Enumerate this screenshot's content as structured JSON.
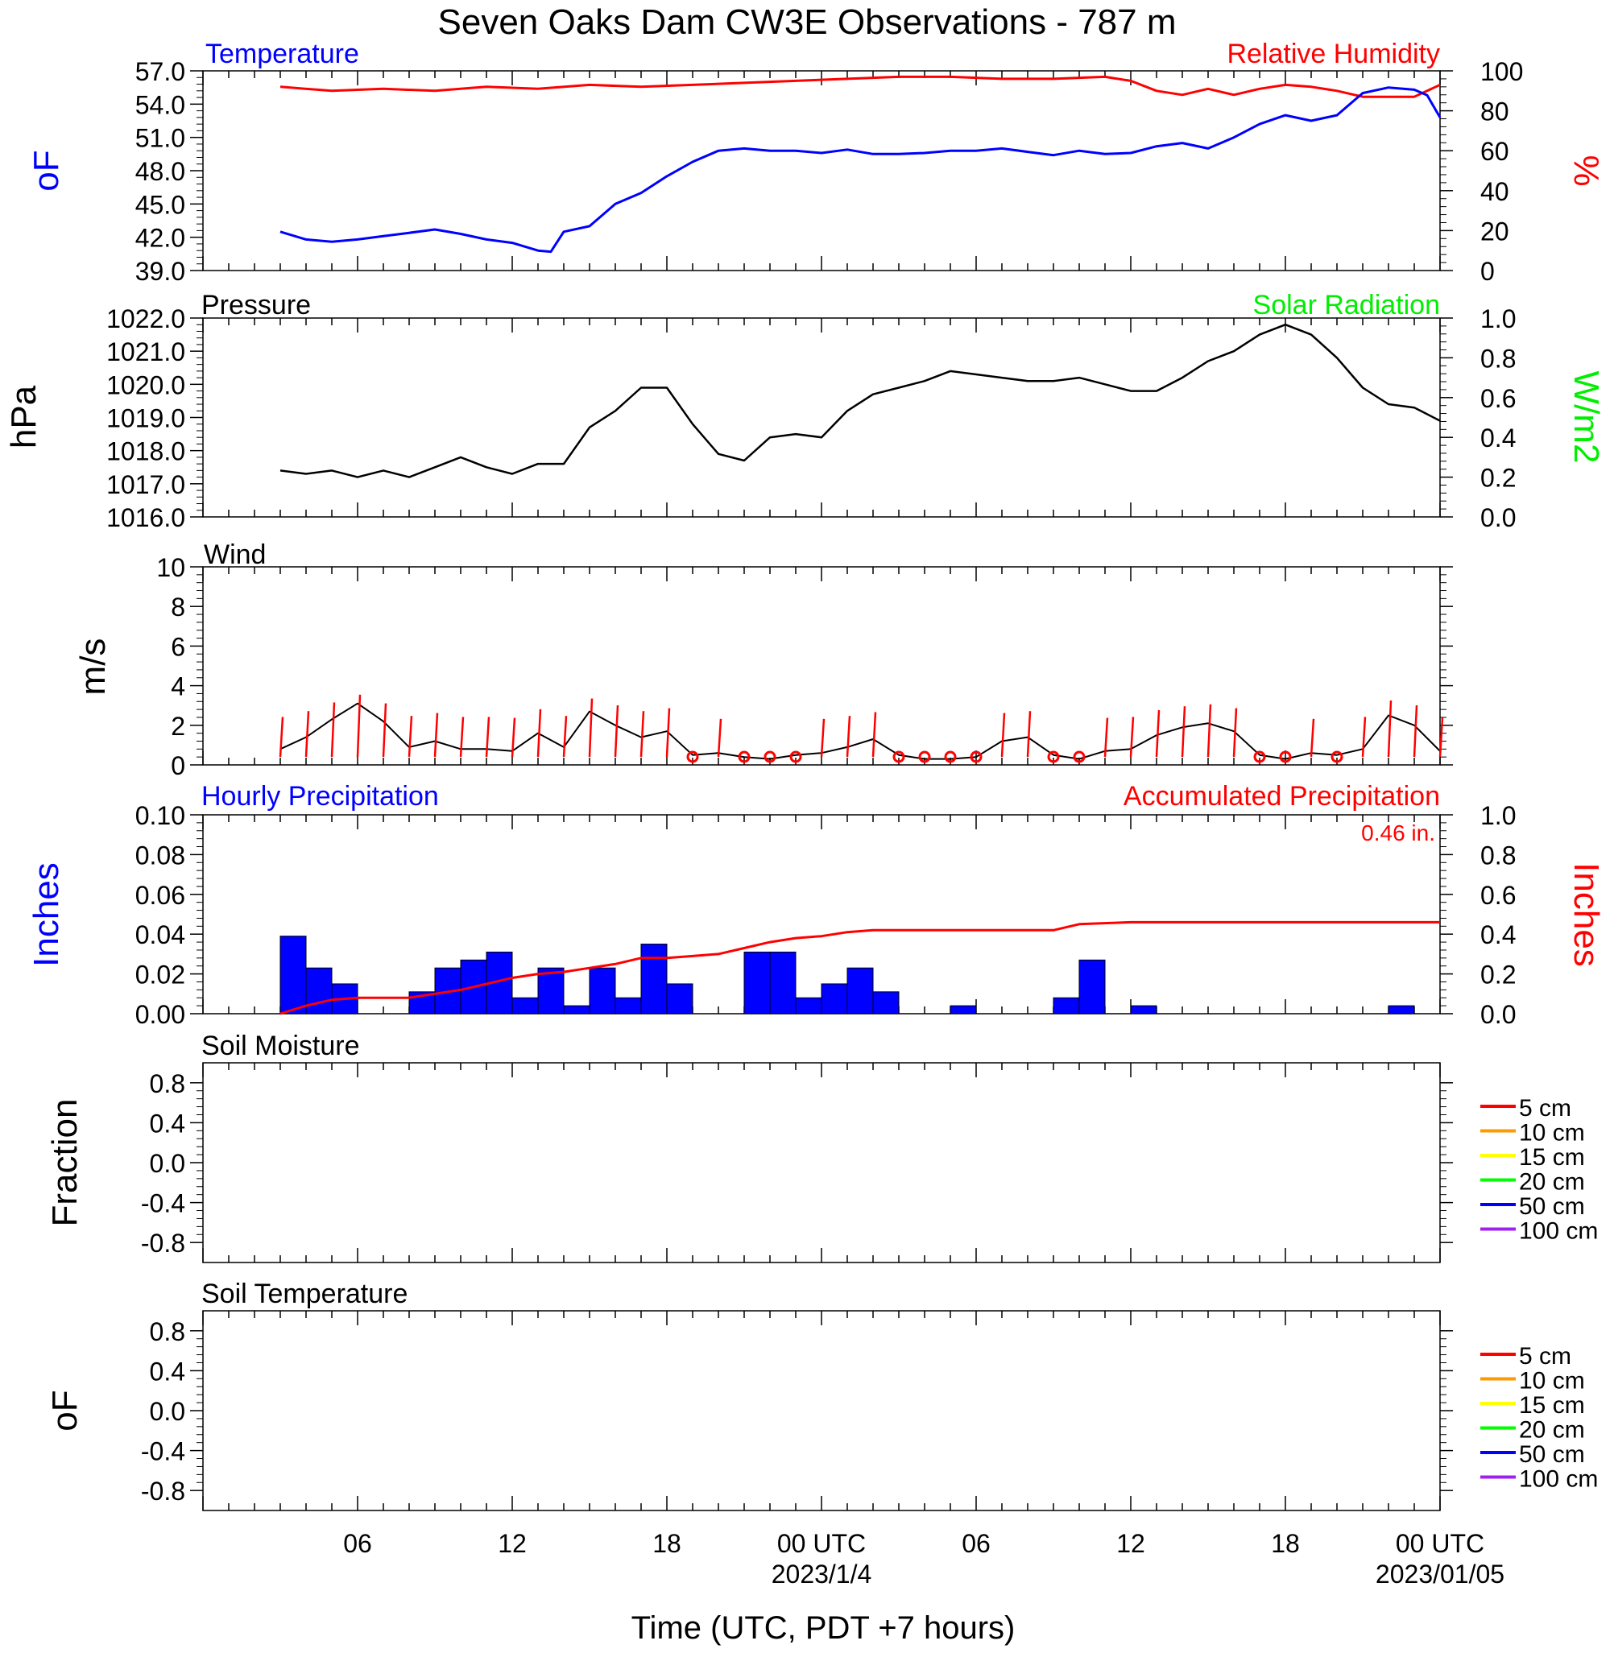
{
  "title": "Seven Oaks Dam CW3E Observations - 787 m",
  "x_axis": {
    "label": "Time (UTC, PDT +7 hours)",
    "range_hours": [
      -3,
      45
    ],
    "ticks": [
      {
        "hour": 3,
        "label": "06",
        "sub": ""
      },
      {
        "hour": 9,
        "label": "12",
        "sub": ""
      },
      {
        "hour": 15,
        "label": "18",
        "sub": ""
      },
      {
        "hour": 21,
        "label": "00 UTC",
        "sub": "2023/1/4"
      },
      {
        "hour": 27,
        "label": "06",
        "sub": ""
      },
      {
        "hour": 33,
        "label": "12",
        "sub": ""
      },
      {
        "hour": 39,
        "label": "18",
        "sub": ""
      },
      {
        "hour": 45,
        "label": "00 UTC",
        "sub": "2023/01/05"
      }
    ]
  },
  "panels": {
    "temperature": {
      "left_title": "Temperature",
      "right_title": "Relative Humidity",
      "left_unit": "oF",
      "right_unit": "%",
      "left_ticks": [
        "57.0",
        "54.0",
        "51.0",
        "48.0",
        "45.0",
        "42.0",
        "39.0"
      ],
      "right_ticks": [
        "100",
        "80",
        "60",
        "40",
        "20",
        "0"
      ]
    },
    "pressure": {
      "left_title": "Pressure",
      "right_title": "Solar Radiation",
      "left_unit": "hPa",
      "right_unit": "W/m2",
      "left_ticks": [
        "1022.0",
        "1021.0",
        "1020.0",
        "1019.0",
        "1018.0",
        "1017.0",
        "1016.0"
      ],
      "right_ticks": [
        "1.0",
        "0.8",
        "0.6",
        "0.4",
        "0.2",
        "0.0"
      ]
    },
    "wind": {
      "left_title": "Wind",
      "left_unit": "m/s",
      "left_ticks": [
        "10",
        "8",
        "6",
        "4",
        "2",
        "0"
      ]
    },
    "precip": {
      "left_title": "Hourly Precipitation",
      "right_title": "Accumulated Precipitation",
      "left_unit": "Inches",
      "right_unit": "Inches",
      "total_label": "0.46 in.",
      "left_ticks": [
        "0.10",
        "0.08",
        "0.06",
        "0.04",
        "0.02",
        "0.00"
      ],
      "right_ticks": [
        "1.0",
        "0.8",
        "0.6",
        "0.4",
        "0.2",
        "0.0"
      ]
    },
    "soil_moisture": {
      "left_title": "Soil Moisture",
      "left_unit": "Fraction",
      "left_ticks": [
        "0.8",
        "0.4",
        "0.0",
        "-0.4",
        "-0.8"
      ]
    },
    "soil_temperature": {
      "left_title": "Soil Temperature",
      "left_unit": "oF",
      "left_ticks": [
        "0.8",
        "0.4",
        "0.0",
        "-0.4",
        "-0.8"
      ]
    }
  },
  "soil_legend": [
    {
      "label": "5 cm",
      "color": "#ff0000"
    },
    {
      "label": "10 cm",
      "color": "#ff9900"
    },
    {
      "label": "15 cm",
      "color": "#ffff00"
    },
    {
      "label": "20 cm",
      "color": "#00ff00"
    },
    {
      "label": "50 cm",
      "color": "#0000ff"
    },
    {
      "label": "100 cm",
      "color": "#a020f0"
    }
  ],
  "colors": {
    "temperature": "#0000ff",
    "humidity": "#ff0000",
    "pressure": "#000000",
    "solar": "#00ee00",
    "hourly_precip": "#0000ff",
    "accum_precip": "#ff0000",
    "wind": "#000000",
    "wind_barb": "#ff0000"
  },
  "chart_data": [
    {
      "type": "line",
      "title": "Temperature / Relative Humidity",
      "x_units": "hours since 2023-01-03 00 UTC",
      "ylim_left": [
        39,
        57
      ],
      "ylim_right": [
        0,
        100
      ],
      "series": [
        {
          "name": "Temperature",
          "axis": "left",
          "x": [
            0,
            1,
            2,
            3,
            4,
            5,
            6,
            7,
            8,
            9,
            10,
            10.5,
            11,
            12,
            13,
            14,
            15,
            16,
            17,
            18,
            19,
            20,
            21,
            22,
            23,
            24,
            25,
            26,
            27,
            28,
            29,
            30,
            31,
            32,
            33,
            34,
            35,
            36,
            37,
            38,
            39,
            40,
            41,
            42,
            43,
            44,
            44.5,
            45
          ],
          "y": [
            42.5,
            41.8,
            41.6,
            41.8,
            42.1,
            42.4,
            42.7,
            42.3,
            41.8,
            41.5,
            40.8,
            40.7,
            42.5,
            43.0,
            45.0,
            46.0,
            47.5,
            48.8,
            49.8,
            50.0,
            49.8,
            49.8,
            49.6,
            49.9,
            49.5,
            49.5,
            49.6,
            49.8,
            49.8,
            50.0,
            49.7,
            49.4,
            49.8,
            49.5,
            49.6,
            50.2,
            50.5,
            50.0,
            51.0,
            52.2,
            53.0,
            52.5,
            53.0,
            55.0,
            55.5,
            55.3,
            54.8,
            52.8
          ]
        },
        {
          "name": "Relative Humidity",
          "axis": "right",
          "x": [
            0,
            2,
            4,
            6,
            8,
            10,
            12,
            14,
            16,
            18,
            20,
            22,
            24,
            26,
            28,
            30,
            32,
            33,
            34,
            35,
            36,
            37,
            38,
            39,
            40,
            41,
            42,
            44,
            45
          ],
          "y": [
            92,
            90,
            91,
            90,
            92,
            91,
            93,
            92,
            93,
            94,
            95,
            96,
            97,
            97,
            96,
            96,
            97,
            95,
            90,
            88,
            91,
            88,
            91,
            93,
            92,
            90,
            87,
            87,
            93
          ]
        }
      ]
    },
    {
      "type": "line",
      "title": "Pressure",
      "x_units": "hours since 2023-01-03 00 UTC",
      "ylim_left": [
        1016,
        1022
      ],
      "ylim_right": [
        0,
        1
      ],
      "series": [
        {
          "name": "Pressure",
          "axis": "left",
          "x": [
            0,
            1,
            2,
            3,
            4,
            5,
            6,
            7,
            8,
            9,
            10,
            11,
            12,
            13,
            14,
            15,
            16,
            17,
            18,
            19,
            20,
            21,
            22,
            23,
            24,
            25,
            26,
            27,
            28,
            29,
            30,
            31,
            32,
            33,
            34,
            35,
            36,
            37,
            38,
            39,
            40,
            41,
            42,
            43,
            44,
            45
          ],
          "y": [
            1017.4,
            1017.3,
            1017.4,
            1017.2,
            1017.4,
            1017.2,
            1017.5,
            1017.8,
            1017.5,
            1017.3,
            1017.6,
            1017.6,
            1018.7,
            1019.2,
            1019.9,
            1019.9,
            1018.8,
            1017.9,
            1017.7,
            1018.4,
            1018.5,
            1018.4,
            1019.2,
            1019.7,
            1019.9,
            1020.1,
            1020.4,
            1020.3,
            1020.2,
            1020.1,
            1020.1,
            1020.2,
            1020.0,
            1019.8,
            1019.8,
            1020.2,
            1020.7,
            1021.0,
            1021.5,
            1021.8,
            1021.5,
            1020.8,
            1019.9,
            1019.4,
            1019.3,
            1018.9
          ]
        }
      ]
    },
    {
      "type": "line",
      "title": "Wind",
      "x_units": "hours since 2023-01-03 00 UTC",
      "ylim": [
        0,
        10
      ],
      "series": [
        {
          "name": "Wind speed",
          "x": [
            0,
            1,
            2,
            3,
            4,
            5,
            6,
            7,
            8,
            9,
            10,
            11,
            12,
            13,
            14,
            15,
            16,
            17,
            18,
            19,
            20,
            21,
            22,
            23,
            24,
            25,
            26,
            27,
            28,
            29,
            30,
            31,
            32,
            33,
            34,
            35,
            36,
            37,
            38,
            39,
            40,
            41,
            42,
            43,
            44,
            45
          ],
          "y": [
            0.8,
            1.4,
            2.3,
            3.1,
            2.2,
            0.9,
            1.2,
            0.8,
            0.8,
            0.7,
            1.6,
            0.9,
            2.7,
            2.0,
            1.4,
            1.7,
            0.5,
            0.6,
            0.4,
            0.3,
            0.5,
            0.6,
            0.9,
            1.3,
            0.5,
            0.3,
            0.3,
            0.4,
            1.2,
            1.4,
            0.5,
            0.3,
            0.7,
            0.8,
            1.5,
            1.9,
            2.1,
            1.7,
            0.5,
            0.3,
            0.6,
            0.5,
            0.8,
            2.5,
            2.0,
            0.7
          ]
        }
      ]
    },
    {
      "type": "bar",
      "title": "Hourly Precipitation / Accumulated Precipitation",
      "x_units": "hours since 2023-01-03 00 UTC",
      "ylim_left": [
        0,
        0.1
      ],
      "ylim_right": [
        0,
        1
      ],
      "series": [
        {
          "name": "Hourly Precipitation",
          "axis": "left",
          "x": [
            0,
            1,
            2,
            5,
            6,
            7,
            8,
            9,
            10,
            11,
            12,
            13,
            14,
            15,
            16,
            18,
            19,
            20,
            21,
            22,
            23,
            24,
            26,
            30,
            31,
            33,
            43
          ],
          "y": [
            0.039,
            0.023,
            0.015,
            0.011,
            0.023,
            0.027,
            0.031,
            0.008,
            0.023,
            0.004,
            0.023,
            0.008,
            0.035,
            0.015,
            0.0,
            0.031,
            0.031,
            0.008,
            0.015,
            0.023,
            0.011,
            0.0,
            0.004,
            0.008,
            0.027,
            0.004,
            0.004
          ]
        },
        {
          "name": "Accumulated Precipitation",
          "axis": "right",
          "type": "line",
          "x": [
            0,
            1,
            2,
            3,
            4,
            5,
            6,
            7,
            8,
            9,
            10,
            11,
            12,
            13,
            14,
            15,
            16,
            17,
            18,
            19,
            20,
            21,
            22,
            23,
            24,
            30,
            31,
            33,
            43,
            45
          ],
          "y": [
            0.0,
            0.04,
            0.07,
            0.08,
            0.08,
            0.08,
            0.1,
            0.12,
            0.15,
            0.18,
            0.2,
            0.21,
            0.23,
            0.25,
            0.28,
            0.28,
            0.29,
            0.3,
            0.33,
            0.36,
            0.38,
            0.39,
            0.41,
            0.42,
            0.42,
            0.42,
            0.45,
            0.46,
            0.46,
            0.46
          ]
        }
      ]
    },
    {
      "type": "line",
      "title": "Soil Moisture",
      "ylim": [
        -1,
        1
      ],
      "series": []
    },
    {
      "type": "line",
      "title": "Soil Temperature",
      "ylim": [
        -1,
        1
      ],
      "series": []
    }
  ]
}
